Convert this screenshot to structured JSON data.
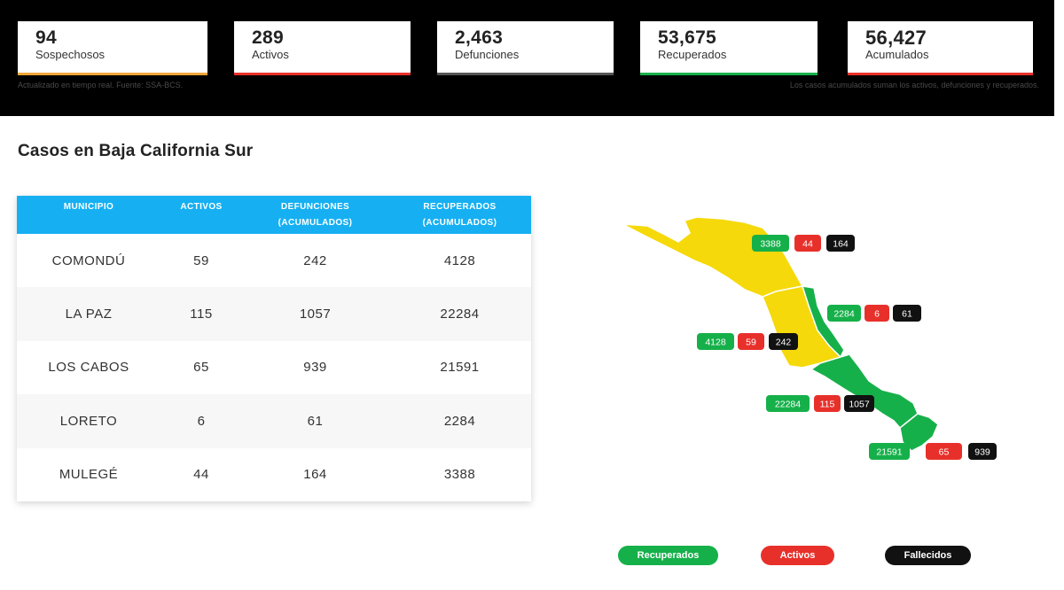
{
  "stats": [
    {
      "value": "94",
      "label": "Sospechosos",
      "color": "#f2a53a"
    },
    {
      "value": "289",
      "label": "Activos",
      "color": "#e8302a"
    },
    {
      "value": "2,463",
      "label": "Defunciones",
      "color": "#555555"
    },
    {
      "value": "53,675",
      "label": "Recuperados",
      "color": "#16b04a"
    },
    {
      "value": "56,427",
      "label": "Acumulados",
      "color": "#e8302a"
    }
  ],
  "notes": {
    "left": "Actualizado en tiempo real. Fuente: SSA-BCS.",
    "right": "Los casos acumulados suman los activos, defunciones y recuperados."
  },
  "section_title": "Casos en Baja California Sur",
  "table": {
    "headers": [
      {
        "line1": "MUNICIPIO",
        "line2": ""
      },
      {
        "line1": "ACTIVOS",
        "line2": ""
      },
      {
        "line1": "DEFUNCIONES",
        "line2": "(ACUMULADOS)"
      },
      {
        "line1": "RECUPERADOS",
        "line2": "(ACUMULADOS)"
      }
    ],
    "rows": [
      [
        "COMONDÚ",
        "59",
        "242",
        "4128"
      ],
      [
        "LA PAZ",
        "115",
        "1057",
        "22284"
      ],
      [
        "LOS CABOS",
        "65",
        "939",
        "21591"
      ],
      [
        "LORETO",
        "6",
        "61",
        "2284"
      ],
      [
        "MULEGÉ",
        "44",
        "164",
        "3388"
      ]
    ]
  },
  "map": {
    "colors": {
      "yellow": "#f5d90a",
      "green": "#16b04a",
      "red": "#e8302a",
      "black": "#111111"
    },
    "badges": [
      {
        "municipio": "MULEGÉ",
        "recuperados": "3388",
        "activos": "44",
        "fallecidos": "164"
      },
      {
        "municipio": "LORETO",
        "recuperados": "2284",
        "activos": "6",
        "fallecidos": "61"
      },
      {
        "municipio": "COMONDÚ",
        "recuperados": "4128",
        "activos": "59",
        "fallecidos": "242"
      },
      {
        "municipio": "LA PAZ",
        "recuperados": "22284",
        "activos": "115",
        "fallecidos": "1057"
      },
      {
        "municipio": "LOS CABOS",
        "recuperados": "21591",
        "activos": "65",
        "fallecidos": "939"
      }
    ]
  },
  "legend": [
    {
      "label": "Recuperados",
      "color": "#16b04a"
    },
    {
      "label": "Activos",
      "color": "#e8302a"
    },
    {
      "label": "Fallecidos",
      "color": "#111111"
    }
  ]
}
